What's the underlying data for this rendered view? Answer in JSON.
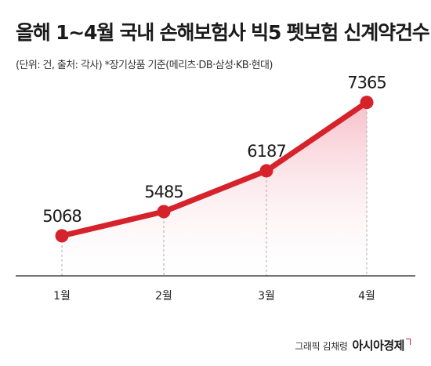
{
  "title": "올해 1~4월 국내 손해보험사 빅5 펫보험 신계약건수",
  "subtitle": "(단위: 건, 출처: 각사)  *장기상품 기준(메리츠·DB·삼성·KB·현대)",
  "credit": {
    "label": "그래픽 김채령",
    "brand": "아시아경제"
  },
  "colors": {
    "line": "#d6222a",
    "area_top": "#f5b9c4",
    "area_bottom": "#ffffff",
    "axis": "#222222",
    "dashed": "#aaaaaa"
  },
  "chart_data": {
    "type": "line",
    "categories": [
      "1월",
      "2월",
      "3월",
      "4월"
    ],
    "values": [
      5068,
      5485,
      6187,
      7365
    ],
    "title": "올해 1~4월 국내 손해보험사 빅5 펫보험 신계약건수",
    "xlabel": "",
    "ylabel": "",
    "unit": "건",
    "ylim": [
      4500,
      7400
    ],
    "grid": false,
    "data_labels": true
  }
}
